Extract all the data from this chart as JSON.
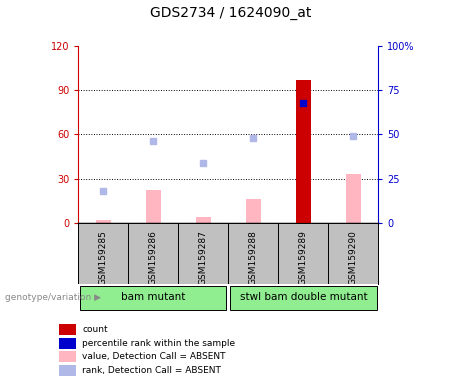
{
  "title": "GDS2734 / 1624090_at",
  "samples": [
    "GSM159285",
    "GSM159286",
    "GSM159287",
    "GSM159288",
    "GSM159289",
    "GSM159290"
  ],
  "count_values": [
    null,
    null,
    null,
    null,
    97,
    null
  ],
  "rank_values": [
    null,
    null,
    null,
    null,
    68,
    null
  ],
  "absent_value_bars": [
    2,
    22,
    4,
    16,
    null,
    33
  ],
  "absent_rank_dots": [
    18,
    46,
    34,
    48,
    null,
    49
  ],
  "left_ylim": [
    0,
    120
  ],
  "right_ylim": [
    0,
    100
  ],
  "left_yticks": [
    0,
    30,
    60,
    90,
    120
  ],
  "right_yticks": [
    0,
    25,
    50,
    75,
    100
  ],
  "left_yticklabels": [
    "0",
    "30",
    "60",
    "90",
    "120"
  ],
  "right_yticklabels": [
    "0",
    "25",
    "50",
    "75",
    "100%"
  ],
  "left_tick_color": "#cc0000",
  "right_tick_color": "#0000cc",
  "bar_width": 0.3,
  "count_color": "#cc0000",
  "rank_color": "#0000cc",
  "absent_value_color": "#ffb6c1",
  "absent_rank_color": "#b0b8e8",
  "group_bg_color": "#c0c0c0",
  "group_label_color": "#90ee90",
  "group1_label": "bam mutant",
  "group2_label": "stwl bam double mutant",
  "legend_items": [
    {
      "label": "count",
      "color": "#cc0000"
    },
    {
      "label": "percentile rank within the sample",
      "color": "#0000cc"
    },
    {
      "label": "value, Detection Call = ABSENT",
      "color": "#ffb6c1"
    },
    {
      "label": "rank, Detection Call = ABSENT",
      "color": "#b0b8e8"
    }
  ]
}
